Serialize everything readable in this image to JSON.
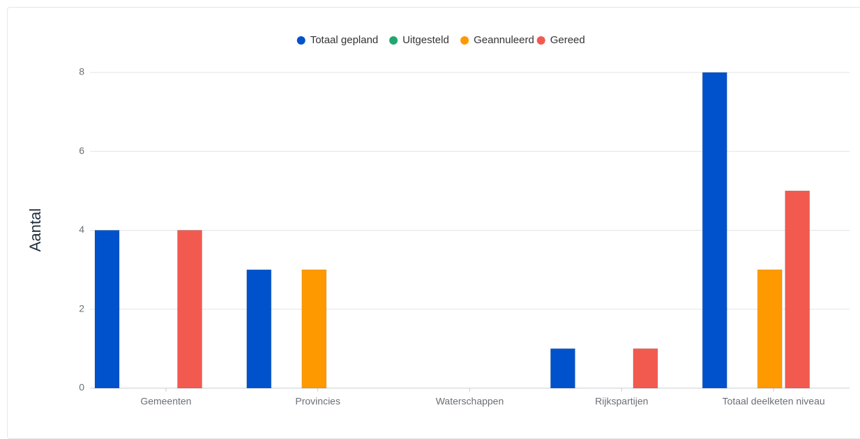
{
  "chart_data": {
    "type": "bar",
    "title": "",
    "xlabel": "",
    "ylabel": "Aantal",
    "ylim": [
      0,
      8
    ],
    "yticks": [
      0,
      2,
      4,
      6,
      8
    ],
    "grid": true,
    "legend_position": "top-center",
    "categories": [
      "Gemeenten",
      "Provincies",
      "Waterschappen",
      "Rijkspartijen",
      "Totaal deelketen niveau"
    ],
    "series": [
      {
        "name": "Totaal gepland",
        "color": "#0052cc",
        "values": [
          4,
          3,
          0,
          1,
          8
        ]
      },
      {
        "name": "Uitgesteld",
        "color": "#22a66e",
        "values": [
          0,
          0,
          0,
          0,
          0
        ]
      },
      {
        "name": "Geannuleerd",
        "color": "#ff9900",
        "values": [
          0,
          3,
          0,
          0,
          3
        ]
      },
      {
        "name": "Gereed",
        "color": "#f25a50",
        "values": [
          4,
          0,
          0,
          1,
          5
        ]
      }
    ]
  }
}
